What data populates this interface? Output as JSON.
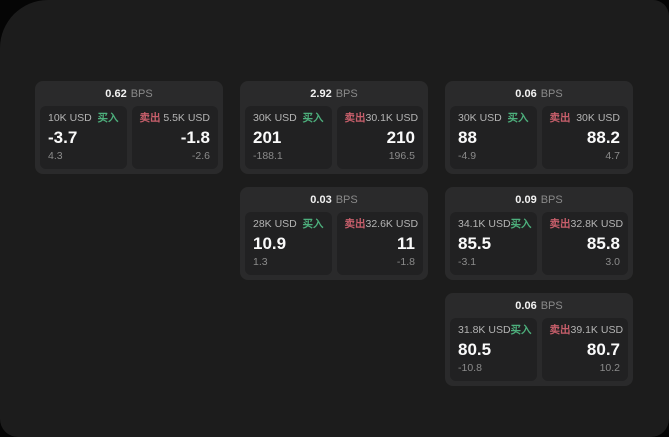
{
  "labels": {
    "buy": "买入",
    "sell": "卖出",
    "bps_unit": "BPS"
  },
  "colors": {
    "buy": "#4daf7c",
    "sell": "#c85f6b",
    "surface": "#1c1c1c",
    "card": "#2a2a2b",
    "panel": "#212122"
  },
  "cards": [
    {
      "row": 1,
      "col": 1,
      "bps": "0.62",
      "buy": {
        "amount": "10K USD",
        "value": "-3.7",
        "sub": "4.3"
      },
      "sell": {
        "amount": "5.5K USD",
        "value": "-1.8",
        "sub": "-2.6"
      }
    },
    {
      "row": 1,
      "col": 2,
      "bps": "2.92",
      "buy": {
        "amount": "30K USD",
        "value": "201",
        "sub": "-188.1"
      },
      "sell": {
        "amount": "30.1K USD",
        "value": "210",
        "sub": "196.5"
      }
    },
    {
      "row": 1,
      "col": 3,
      "bps": "0.06",
      "buy": {
        "amount": "30K USD",
        "value": "88",
        "sub": "-4.9"
      },
      "sell": {
        "amount": "30K USD",
        "value": "88.2",
        "sub": "4.7"
      }
    },
    {
      "row": 2,
      "col": 2,
      "bps": "0.03",
      "buy": {
        "amount": "28K USD",
        "value": "10.9",
        "sub": "1.3"
      },
      "sell": {
        "amount": "32.6K USD",
        "value": "11",
        "sub": "-1.8"
      }
    },
    {
      "row": 2,
      "col": 3,
      "bps": "0.09",
      "buy": {
        "amount": "34.1K USD",
        "value": "85.5",
        "sub": "-3.1"
      },
      "sell": {
        "amount": "32.8K USD",
        "value": "85.8",
        "sub": "3.0"
      }
    },
    {
      "row": 3,
      "col": 3,
      "bps": "0.06",
      "buy": {
        "amount": "31.8K USD",
        "value": "80.5",
        "sub": "-10.8"
      },
      "sell": {
        "amount": "39.1K USD",
        "value": "80.7",
        "sub": "10.2"
      }
    }
  ]
}
